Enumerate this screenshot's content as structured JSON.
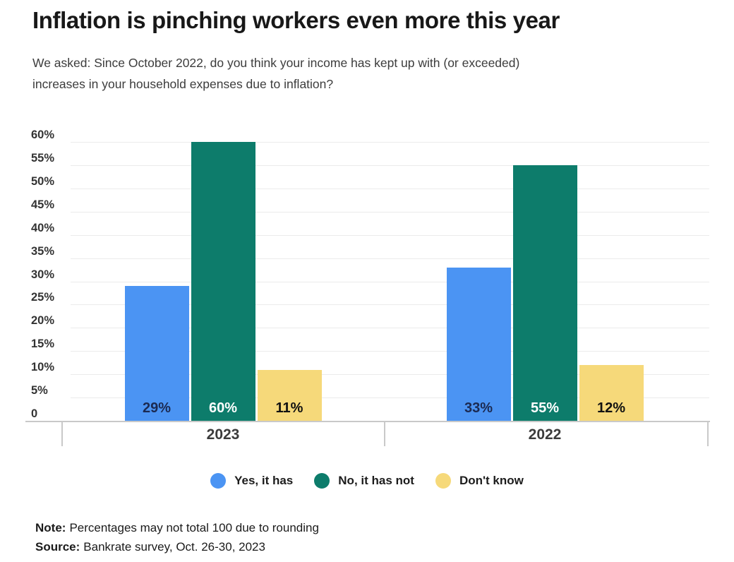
{
  "chart_data": {
    "type": "bar",
    "title": "Inflation is pinching workers even more this year",
    "subtitle": "We asked: Since October 2022, do you think your income has kept up with (or exceeded)\nincreases in your household expenses due to inflation?",
    "categories": [
      "2023",
      "2022"
    ],
    "series": [
      {
        "name": "Yes, it has",
        "color": "#4b94f3",
        "label_color": "#1b2a52",
        "values": [
          29,
          33
        ]
      },
      {
        "name": "No, it has not",
        "color": "#0d7c6b",
        "label_color": "#ffffff",
        "values": [
          60,
          55
        ]
      },
      {
        "name": "Don't know",
        "color": "#f6d97a",
        "label_color": "#111111",
        "values": [
          11,
          12
        ]
      }
    ],
    "value_suffix": "%",
    "y_ticks": [
      "60%",
      "55%",
      "50%",
      "45%",
      "40%",
      "35%",
      "30%",
      "25%",
      "20%",
      "15%",
      "10%",
      "5%",
      "0"
    ],
    "ylim": [
      0,
      60
    ],
    "y_step": 5,
    "grid": true,
    "legend_position": "bottom"
  },
  "footer": {
    "note_label": "Note:",
    "note_text": "Percentages may not total 100 due to rounding",
    "source_label": "Source:",
    "source_text": "Bankrate survey, Oct. 26-30, 2023"
  }
}
